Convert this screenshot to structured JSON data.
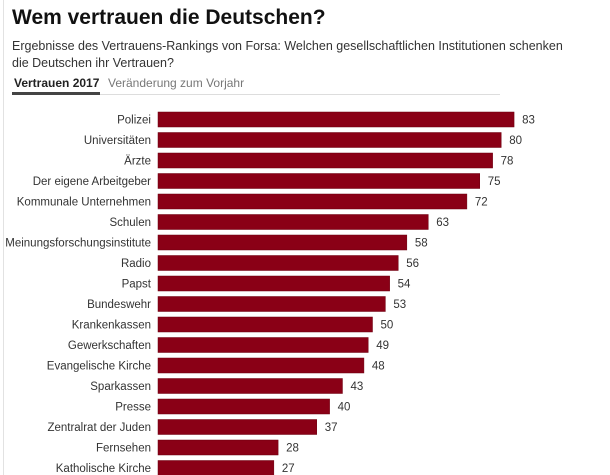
{
  "header": {
    "title": "Wem vertrauen die Deutschen?",
    "subtitle": "Ergebnisse des Vertrauens-Rankings von Forsa: Welchen gesellschaftlichen Institutionen schenken die Deutschen ihr Vertrauen?"
  },
  "tabs": [
    {
      "label": "Vertrauen 2017",
      "active": true
    },
    {
      "label": "Veränderung zum Vorjahr",
      "active": false
    }
  ],
  "colors": {
    "bar": "#8a0016"
  },
  "chart_data": {
    "type": "bar",
    "orientation": "horizontal",
    "title": "Wem vertrauen die Deutschen?",
    "xlabel": "",
    "ylabel": "",
    "xlim": [
      0,
      83
    ],
    "grid": false,
    "categories": [
      "Polizei",
      "Universitäten",
      "Ärzte",
      "Der eigene Arbeitgeber",
      "Kommunale Unternehmen",
      "Schulen",
      "Meinungsforschungsinstitute",
      "Radio",
      "Papst",
      "Bundeswehr",
      "Krankenkassen",
      "Gewerkschaften",
      "Evangelische Kirche",
      "Sparkassen",
      "Presse",
      "Zentralrat der Juden",
      "Fernsehen",
      "Katholische Kirche"
    ],
    "values": [
      83,
      80,
      78,
      75,
      72,
      63,
      58,
      56,
      54,
      53,
      50,
      49,
      48,
      43,
      40,
      37,
      28,
      27
    ]
  }
}
